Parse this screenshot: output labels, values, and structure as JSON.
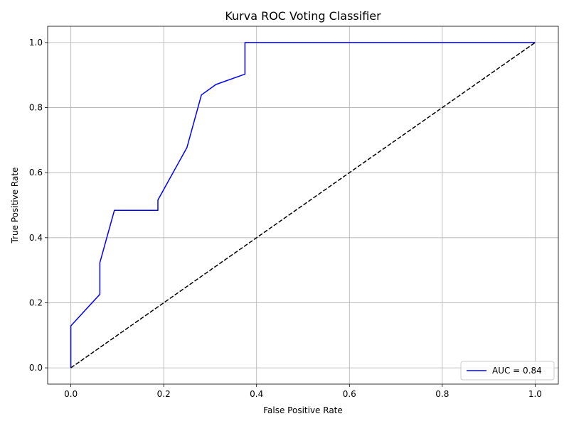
{
  "chart_data": {
    "type": "line",
    "title": "Kurva ROC Voting Classifier",
    "xlabel": "False Positive Rate",
    "ylabel": "True Positive Rate",
    "xlim": [
      -0.05,
      1.05
    ],
    "ylim": [
      -0.05,
      1.05
    ],
    "xticks": [
      "0.0",
      "0.2",
      "0.4",
      "0.6",
      "0.8",
      "1.0"
    ],
    "yticks": [
      "0.0",
      "0.2",
      "0.4",
      "0.6",
      "0.8",
      "1.0"
    ],
    "grid": true,
    "legend_position": "lower-right",
    "series": [
      {
        "name": "AUC = 0.84",
        "color": "#0000ff",
        "style": "solid",
        "x": [
          0.0,
          0.0,
          0.0625,
          0.0625,
          0.09375,
          0.1875,
          0.1875,
          0.25,
          0.28125,
          0.3125,
          0.375,
          0.375,
          1.0
        ],
        "y": [
          0.0,
          0.129,
          0.226,
          0.323,
          0.484,
          0.484,
          0.516,
          0.677,
          0.839,
          0.871,
          0.903,
          1.0,
          1.0
        ]
      },
      {
        "color": "#000000",
        "style": "dashed",
        "x": [
          0.0,
          1.0
        ],
        "y": [
          0.0,
          1.0
        ]
      }
    ]
  }
}
